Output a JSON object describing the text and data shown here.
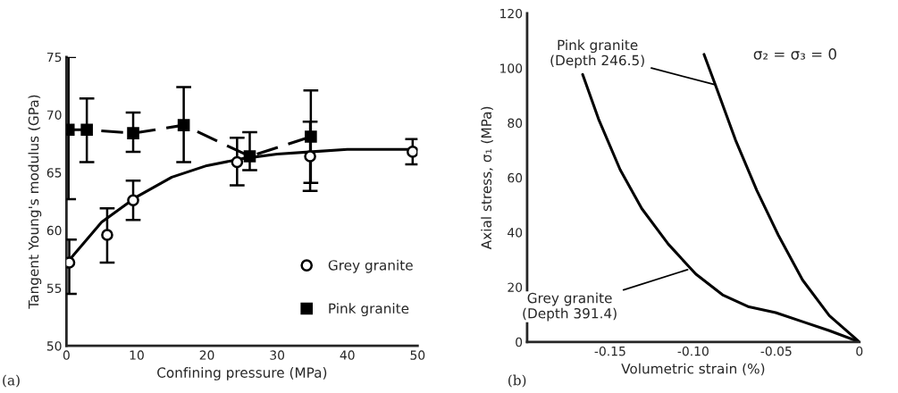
{
  "chart_data": [
    {
      "type": "scatter",
      "xlabel": "Confining pressure (MPa)",
      "ylabel": "Tangent Young's modulus (GPa)",
      "xlim": [
        0,
        50
      ],
      "xticks": [
        0,
        10,
        20,
        30,
        40,
        50
      ],
      "ylim": [
        50,
        75
      ],
      "yticks": [
        50,
        55,
        60,
        65,
        70,
        75
      ],
      "grid": false,
      "legend": "lower right",
      "series": [
        {
          "name": "Grey granite",
          "type": "scatter",
          "marker": "circle",
          "color": "#000000",
          "x": [
            0.4,
            5.8,
            9.5,
            24.3,
            34.7,
            49.3
          ],
          "values": [
            57.2,
            59.6,
            62.6,
            65.9,
            66.4,
            66.8
          ],
          "errors": [
            [
              54.5,
              59.2
            ],
            [
              57.2,
              61.9
            ],
            [
              60.9,
              64.3
            ],
            [
              63.9,
              68.0
            ],
            [
              63.4,
              69.4
            ],
            [
              65.7,
              67.9
            ]
          ]
        },
        {
          "name": "Pink granite",
          "type": "scatter",
          "marker": "square",
          "color": "#000000",
          "x": [
            0.3,
            2.9,
            9.5,
            16.7,
            26.1,
            34.8
          ],
          "values": [
            68.7,
            68.7,
            68.4,
            69.1,
            66.4,
            68.1
          ],
          "errors": [
            [
              62.7,
              75.0
            ],
            [
              65.9,
              71.4
            ],
            [
              66.8,
              70.2
            ],
            [
              65.9,
              72.4
            ],
            [
              65.2,
              68.5
            ],
            [
              64.1,
              72.1
            ]
          ]
        },
        {
          "type": "line",
          "marker": "none",
          "line_style": "dashed",
          "color": "#000000",
          "x": [
            0.3,
            2.9,
            9.5,
            16.7,
            26.1,
            34.8
          ],
          "values": [
            68.7,
            68.7,
            68.4,
            69.1,
            66.4,
            68.1
          ]
        },
        {
          "type": "line",
          "marker": "none",
          "line_style": "solid",
          "color": "#000000",
          "x": [
            0.5,
            5,
            10,
            15,
            20,
            25,
            30,
            35,
            40,
            50
          ],
          "values": [
            57.5,
            60.7,
            62.9,
            64.6,
            65.6,
            66.2,
            66.6,
            66.8,
            67.0,
            67.0
          ]
        }
      ],
      "annotations": [
        "(a)"
      ]
    },
    {
      "type": "line",
      "xlabel": "Volumetric strain (%)",
      "ylabel": "Axial stress, σ₁ (MPa)",
      "xlim": [
        -0.2,
        0
      ],
      "xticks": [
        {
          "value": -0.15,
          "label": "-0.15"
        },
        {
          "value": -0.1,
          "label": "-0.10"
        },
        {
          "value": -0.05,
          "label": "-0.05"
        },
        0
      ],
      "ylim": [
        0,
        120
      ],
      "yticks": [
        0,
        20,
        40,
        60,
        80,
        100,
        120
      ],
      "grid": false,
      "legend": false,
      "series": [
        {
          "color": "#000000",
          "marker": "none",
          "line_style": "solid",
          "x": [
            -0.0935,
            -0.0867,
            -0.0746,
            -0.0617,
            -0.0488,
            -0.0342,
            -0.0181,
            0
          ],
          "values": [
            105,
            93.9,
            73.8,
            55.3,
            39.0,
            22.6,
            9.6,
            0
          ]
        },
        {
          "color": "#000000",
          "marker": "none",
          "line_style": "solid",
          "x": [
            -0.1666,
            -0.157,
            -0.144,
            -0.131,
            -0.115,
            -0.0985,
            -0.0824,
            -0.0665,
            -0.0504,
            -0.0342,
            -0.018,
            0
          ],
          "values": [
            97.7,
            81.4,
            62.9,
            48.7,
            35.7,
            24.8,
            17.2,
            12.8,
            10.7,
            7.4,
            4.1,
            0
          ]
        }
      ],
      "annotations": [
        {
          "text": "Pink granite\n(Depth 246.5)",
          "x": -0.0867,
          "y": 93.9
        },
        {
          "text": "Grey granite\n(Depth 391.4)",
          "x": -0.1034,
          "y": 26.4
        },
        "σ₂ = σ₃ = 0",
        "(b)"
      ]
    }
  ]
}
